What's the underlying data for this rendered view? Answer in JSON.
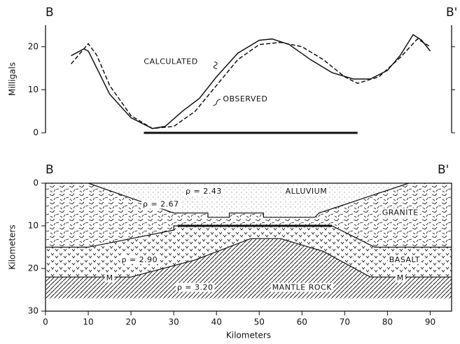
{
  "chart_data": [
    {
      "type": "line",
      "label_left": "B",
      "label_right": "B'",
      "ylabel": "Milligals",
      "xlim": [
        0,
        95
      ],
      "ylim": [
        0,
        25
      ],
      "yticks": [
        0,
        10,
        20
      ],
      "series": [
        {
          "name": "CALCULATED",
          "color": "#111111",
          "dash": false,
          "x": [
            6,
            9,
            10,
            12,
            15,
            20,
            25,
            28,
            32,
            36,
            40,
            45,
            50,
            53,
            57,
            62,
            67,
            72,
            76,
            80,
            83,
            86,
            88,
            90
          ],
          "values": [
            17.9,
            19.5,
            19,
            15,
            9,
            3.5,
            1,
            1.5,
            5,
            8,
            13,
            18.5,
            21.5,
            21.8,
            20.5,
            17,
            14,
            12.5,
            12.5,
            14.5,
            18,
            22.8,
            21.5,
            19
          ]
        },
        {
          "name": "OBSERVED",
          "color": "#111111",
          "dash": true,
          "x": [
            6,
            10,
            12,
            15,
            20,
            25,
            30,
            35,
            40,
            45,
            50,
            55,
            60,
            65,
            70,
            73,
            78,
            83,
            87,
            90
          ],
          "values": [
            16,
            20.7,
            18,
            11,
            4,
            1,
            1.5,
            5,
            11,
            17,
            20.5,
            21,
            20,
            17,
            13,
            11.5,
            13,
            17.5,
            21.8,
            20
          ]
        }
      ],
      "bar": {
        "x": [
          23,
          73
        ],
        "values": [
          0,
          0
        ]
      }
    },
    {
      "type": "cross-section",
      "label_left": "B",
      "label_right": "B'",
      "xlabel": "Kilometers",
      "ylabel": "Kilometers",
      "xlim": [
        0,
        95
      ],
      "ylim": [
        0,
        30
      ],
      "y_inverted": true,
      "xticks": [
        0,
        10,
        20,
        30,
        40,
        50,
        60,
        70,
        80,
        90
      ],
      "yticks": [
        0,
        10,
        20,
        30
      ],
      "boundaries": [
        {
          "x": [
            10,
            30,
            38,
            38,
            43,
            43,
            51,
            51,
            58,
            63,
            64,
            70,
            85
          ],
          "values": [
            0,
            7,
            7,
            8,
            8,
            7,
            7,
            8,
            8,
            8,
            7,
            5,
            0
          ]
        },
        {
          "x": [
            0,
            10,
            30,
            30,
            67,
            77,
            95
          ],
          "values": [
            15,
            15,
            11,
            10,
            10,
            15,
            15
          ]
        },
        {
          "x": [
            0,
            20,
            35,
            48,
            55,
            65,
            76,
            95
          ],
          "values": [
            22,
            22,
            18,
            13,
            13,
            16,
            22,
            22
          ]
        }
      ],
      "mantle_base": 27,
      "bar": {
        "x": [
          31,
          67
        ],
        "values": [
          10,
          10
        ]
      },
      "layer_labels": [
        "ρ = 2.43",
        "ALLUVIUM",
        "ρ = 2.67",
        "GRANITE",
        "ρ = 2.90",
        "BASALT",
        "M",
        "M",
        "ρ = 3.20",
        "MANTLE ROCK"
      ]
    }
  ]
}
